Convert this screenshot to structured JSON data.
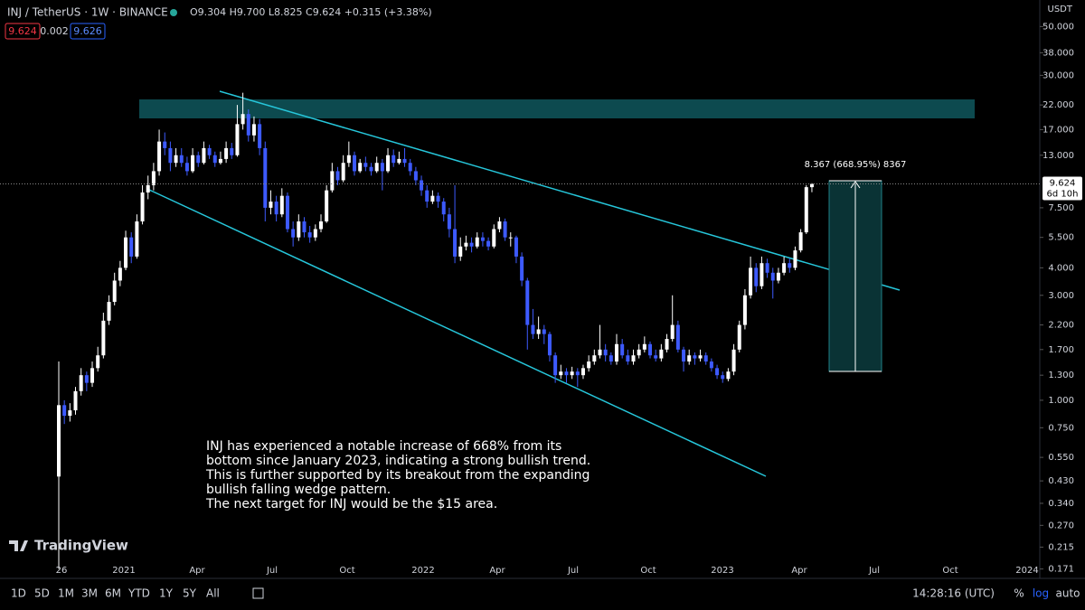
{
  "header": {
    "symbol": "INJ / TetherUS · 1W · BINANCE",
    "ohlc": "O9.304 H9.700 L8.825 C9.624 +0.315 (+3.38%)",
    "bid": "9.624",
    "spread": "0.002",
    "ask": "9.626"
  },
  "chart_data": {
    "type": "candlestick",
    "currency": "USDT",
    "log_scale": true,
    "up_color": "#ffffff",
    "down_color": "#3d5afe",
    "ylim": [
      0.155,
      66
    ],
    "yticks": [
      {
        "value": 50,
        "label": "50.000"
      },
      {
        "value": 38,
        "label": "38.000"
      },
      {
        "value": 30,
        "label": "30.000"
      },
      {
        "value": 22,
        "label": "22.000"
      },
      {
        "value": 17,
        "label": "17.000"
      },
      {
        "value": 13,
        "label": "13.000"
      },
      {
        "value": 7.5,
        "label": "7.500"
      },
      {
        "value": 5.5,
        "label": "5.500"
      },
      {
        "value": 4,
        "label": "4.000"
      },
      {
        "value": 3,
        "label": "3.000"
      },
      {
        "value": 2.2,
        "label": "2.200"
      },
      {
        "value": 1.7,
        "label": "1.700"
      },
      {
        "value": 1.3,
        "label": "1.300"
      },
      {
        "value": 1,
        "label": "1.000"
      },
      {
        "value": 0.75,
        "label": "0.750"
      },
      {
        "value": 0.55,
        "label": "0.550"
      },
      {
        "value": 0.43,
        "label": "0.430"
      },
      {
        "value": 0.34,
        "label": "0.340"
      },
      {
        "value": 0.27,
        "label": "0.270"
      },
      {
        "value": 0.215,
        "label": "0.215"
      },
      {
        "value": 0.171,
        "label": "0.171"
      }
    ],
    "time_labels": [
      "26",
      "2021",
      "Apr",
      "Jul",
      "Oct",
      "2022",
      "Apr",
      "Jul",
      "Oct",
      "2023",
      "Apr",
      "Jul",
      "Oct",
      "2024"
    ],
    "last_price": {
      "value": 9.624,
      "label": "9.624",
      "countdown": "6d 10h"
    },
    "measure_label": "8.367 (668.95%) 8367",
    "annotation": [
      "INJ has experienced a notable increase of 668% from its",
      "bottom since January 2023, indicating a strong bullish trend.",
      "This is further supported by its breakout from the expanding",
      "bullish falling wedge pattern.",
      "The next target for INJ would be the $15 area."
    ],
    "ohlc": [
      [
        0.45,
        1.5,
        0.171,
        0.95
      ],
      [
        0.95,
        1.0,
        0.78,
        0.85
      ],
      [
        0.85,
        0.97,
        0.8,
        0.9
      ],
      [
        0.9,
        1.15,
        0.86,
        1.1
      ],
      [
        1.1,
        1.4,
        1.05,
        1.3
      ],
      [
        1.3,
        1.35,
        1.1,
        1.2
      ],
      [
        1.2,
        1.5,
        1.15,
        1.4
      ],
      [
        1.4,
        1.75,
        1.35,
        1.6
      ],
      [
        1.6,
        2.5,
        1.55,
        2.3
      ],
      [
        2.3,
        3.0,
        2.2,
        2.8
      ],
      [
        2.8,
        3.8,
        2.7,
        3.5
      ],
      [
        3.5,
        4.3,
        3.3,
        4.0
      ],
      [
        4.0,
        5.9,
        3.9,
        5.5
      ],
      [
        5.5,
        5.8,
        4.2,
        4.5
      ],
      [
        4.5,
        7.0,
        4.4,
        6.5
      ],
      [
        6.5,
        9.5,
        6.3,
        8.8
      ],
      [
        8.8,
        10.5,
        8.2,
        9.5
      ],
      [
        9.5,
        12,
        9.0,
        11
      ],
      [
        11,
        17,
        10.5,
        15
      ],
      [
        15,
        16.5,
        13,
        14
      ],
      [
        14,
        15,
        11,
        12
      ],
      [
        12,
        14,
        11.5,
        13
      ],
      [
        13,
        14,
        11.5,
        12
      ],
      [
        12,
        12.8,
        10.5,
        11
      ],
      [
        11,
        14,
        10.8,
        13
      ],
      [
        13,
        13.5,
        11.5,
        12
      ],
      [
        12,
        15,
        11.8,
        14
      ],
      [
        14,
        14.5,
        12.5,
        13
      ],
      [
        13,
        13.5,
        11.5,
        12
      ],
      [
        12,
        13.5,
        11.8,
        12.5
      ],
      [
        12.5,
        15,
        12,
        14
      ],
      [
        14,
        14.8,
        12.5,
        13
      ],
      [
        13,
        22,
        12.8,
        18
      ],
      [
        18,
        25,
        17,
        20
      ],
      [
        20,
        21,
        15,
        16
      ],
      [
        16,
        19.5,
        15,
        18
      ],
      [
        18,
        19,
        13,
        14
      ],
      [
        14,
        15,
        6.5,
        7.5
      ],
      [
        7.5,
        9,
        7,
        8
      ],
      [
        8,
        8.5,
        6.5,
        7
      ],
      [
        7,
        9.2,
        6.8,
        8.5
      ],
      [
        8.5,
        8.8,
        5.8,
        6
      ],
      [
        6,
        6.5,
        5.0,
        5.5
      ],
      [
        5.5,
        7,
        5.3,
        6.5
      ],
      [
        6.5,
        6.8,
        5.5,
        5.8
      ],
      [
        5.8,
        6.2,
        5.2,
        5.5
      ],
      [
        5.5,
        6.3,
        5.3,
        6
      ],
      [
        6,
        7,
        5.8,
        6.5
      ],
      [
        6.5,
        9.5,
        6.4,
        9
      ],
      [
        9,
        12,
        8.8,
        11
      ],
      [
        11,
        11.5,
        9.5,
        10
      ],
      [
        10,
        13,
        9.8,
        12
      ],
      [
        12,
        15,
        11.5,
        13
      ],
      [
        13,
        13.5,
        10.5,
        11
      ],
      [
        11,
        12.5,
        10.8,
        12
      ],
      [
        12,
        12.8,
        11,
        11.5
      ],
      [
        11.5,
        12,
        10.5,
        11
      ],
      [
        11,
        12.8,
        10.8,
        12
      ],
      [
        12,
        12.5,
        9,
        11
      ],
      [
        11,
        14,
        10.8,
        13
      ],
      [
        13,
        13.8,
        11.5,
        12
      ],
      [
        12,
        13.5,
        11.8,
        12.5
      ],
      [
        12.5,
        14,
        11.5,
        12
      ],
      [
        12,
        12.5,
        10.5,
        11
      ],
      [
        11,
        11.5,
        9.5,
        10
      ],
      [
        10,
        10.5,
        8.5,
        9
      ],
      [
        9,
        9.5,
        7.5,
        8
      ],
      [
        8,
        9,
        7.8,
        8.5
      ],
      [
        8.5,
        8.8,
        7.5,
        8
      ],
      [
        8,
        8.3,
        6.5,
        7
      ],
      [
        7,
        7.5,
        5.5,
        6
      ],
      [
        6,
        9.5,
        4.2,
        4.5
      ],
      [
        4.5,
        5.5,
        4.3,
        5
      ],
      [
        5,
        5.6,
        4.8,
        5.2
      ],
      [
        5.2,
        5.5,
        4.7,
        5
      ],
      [
        5,
        5.8,
        4.9,
        5.5
      ],
      [
        5.5,
        5.8,
        5.0,
        5.3
      ],
      [
        5.3,
        5.5,
        4.8,
        5
      ],
      [
        5,
        6.3,
        4.9,
        6
      ],
      [
        6,
        6.8,
        5.8,
        6.5
      ],
      [
        6.5,
        6.7,
        5.3,
        5.5
      ],
      [
        5.5,
        5.8,
        5.0,
        5.5
      ],
      [
        5.5,
        5.6,
        4.2,
        4.5
      ],
      [
        4.5,
        4.7,
        3.3,
        3.5
      ],
      [
        3.5,
        3.6,
        1.7,
        2.2
      ],
      [
        2.2,
        2.6,
        1.9,
        2.0
      ],
      [
        2.0,
        2.4,
        1.9,
        2.1
      ],
      [
        2.1,
        2.2,
        1.8,
        2.0
      ],
      [
        2.0,
        2.05,
        1.5,
        1.6
      ],
      [
        1.6,
        1.65,
        1.2,
        1.3
      ],
      [
        1.3,
        1.45,
        1.25,
        1.35
      ],
      [
        1.35,
        1.4,
        1.2,
        1.3
      ],
      [
        1.3,
        1.42,
        1.25,
        1.35
      ],
      [
        1.35,
        1.4,
        1.15,
        1.3
      ],
      [
        1.3,
        1.45,
        1.25,
        1.4
      ],
      [
        1.4,
        1.6,
        1.35,
        1.5
      ],
      [
        1.5,
        1.7,
        1.45,
        1.6
      ],
      [
        1.6,
        2.2,
        1.55,
        1.7
      ],
      [
        1.7,
        1.8,
        1.5,
        1.6
      ],
      [
        1.6,
        1.65,
        1.45,
        1.5
      ],
      [
        1.5,
        2.0,
        1.45,
        1.8
      ],
      [
        1.8,
        1.9,
        1.55,
        1.6
      ],
      [
        1.6,
        1.7,
        1.45,
        1.5
      ],
      [
        1.5,
        1.7,
        1.45,
        1.6
      ],
      [
        1.6,
        1.8,
        1.55,
        1.7
      ],
      [
        1.7,
        1.95,
        1.65,
        1.8
      ],
      [
        1.8,
        1.85,
        1.55,
        1.6
      ],
      [
        1.6,
        1.7,
        1.5,
        1.55
      ],
      [
        1.55,
        1.8,
        1.5,
        1.7
      ],
      [
        1.7,
        2.0,
        1.65,
        1.9
      ],
      [
        1.9,
        3.0,
        1.85,
        2.2
      ],
      [
        2.2,
        2.3,
        1.65,
        1.7
      ],
      [
        1.7,
        1.75,
        1.35,
        1.5
      ],
      [
        1.5,
        1.7,
        1.45,
        1.6
      ],
      [
        1.6,
        1.65,
        1.45,
        1.55
      ],
      [
        1.55,
        1.7,
        1.5,
        1.6
      ],
      [
        1.6,
        1.65,
        1.45,
        1.5
      ],
      [
        1.5,
        1.55,
        1.35,
        1.4
      ],
      [
        1.4,
        1.45,
        1.25,
        1.3
      ],
      [
        1.3,
        1.35,
        1.2,
        1.25
      ],
      [
        1.25,
        1.4,
        1.22,
        1.35
      ],
      [
        1.35,
        1.8,
        1.3,
        1.7
      ],
      [
        1.7,
        2.3,
        1.65,
        2.2
      ],
      [
        2.2,
        3.2,
        2.1,
        3.0
      ],
      [
        3.0,
        4.5,
        2.9,
        4.0
      ],
      [
        4.0,
        4.2,
        3.1,
        3.3
      ],
      [
        3.3,
        4.5,
        3.2,
        4.2
      ],
      [
        4.2,
        4.4,
        3.6,
        3.8
      ],
      [
        3.8,
        4.0,
        2.9,
        3.5
      ],
      [
        3.5,
        4.0,
        3.4,
        3.8
      ],
      [
        3.8,
        4.5,
        3.7,
        4.2
      ],
      [
        4.2,
        4.4,
        3.8,
        4.0
      ],
      [
        4.0,
        5.0,
        3.9,
        4.8
      ],
      [
        4.8,
        6.0,
        4.7,
        5.8
      ],
      [
        5.8,
        9.5,
        5.7,
        9.304
      ],
      [
        9.304,
        9.7,
        8.825,
        9.624
      ]
    ]
  },
  "brand": "TradingView",
  "toolbar": {
    "ranges": [
      "1D",
      "5D",
      "1M",
      "3M",
      "6M",
      "YTD",
      "1Y",
      "5Y",
      "All"
    ],
    "clock": "14:28:16 (UTC)",
    "percent": "%",
    "log": "log",
    "auto": "auto"
  }
}
